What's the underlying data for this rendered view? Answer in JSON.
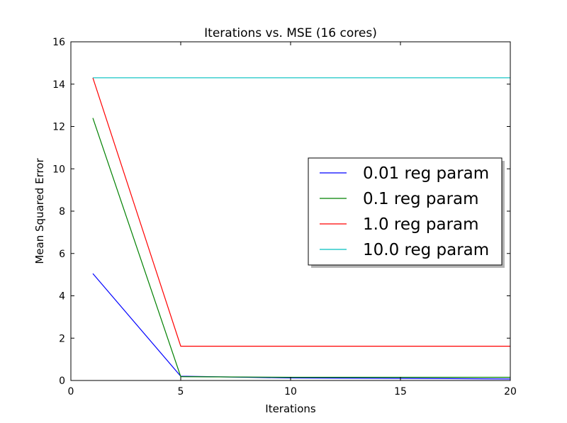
{
  "chart_data": {
    "type": "line",
    "title": "Iterations vs. MSE (16 cores)",
    "xlabel": "Iterations",
    "ylabel": "Mean Squared Error",
    "xlim": [
      0,
      20
    ],
    "ylim": [
      0,
      16
    ],
    "xticks": [
      0,
      5,
      10,
      15,
      20
    ],
    "yticks": [
      0,
      2,
      4,
      6,
      8,
      10,
      12,
      14,
      16
    ],
    "x": [
      1,
      5,
      10,
      15,
      20
    ],
    "grid": false,
    "legend_position": "center-right",
    "series": [
      {
        "name": "0.01 reg param",
        "color": "#0000ff",
        "values": [
          5.05,
          0.2,
          0.12,
          0.1,
          0.07
        ]
      },
      {
        "name": "0.1 reg param",
        "color": "#008000",
        "values": [
          12.4,
          0.18,
          0.15,
          0.15,
          0.15
        ]
      },
      {
        "name": "1.0 reg param",
        "color": "#ff0000",
        "values": [
          14.3,
          1.62,
          1.62,
          1.62,
          1.62
        ]
      },
      {
        "name": "10.0 reg param",
        "color": "#00bfbf",
        "values": [
          14.3,
          14.3,
          14.3,
          14.3,
          14.3
        ]
      }
    ]
  }
}
